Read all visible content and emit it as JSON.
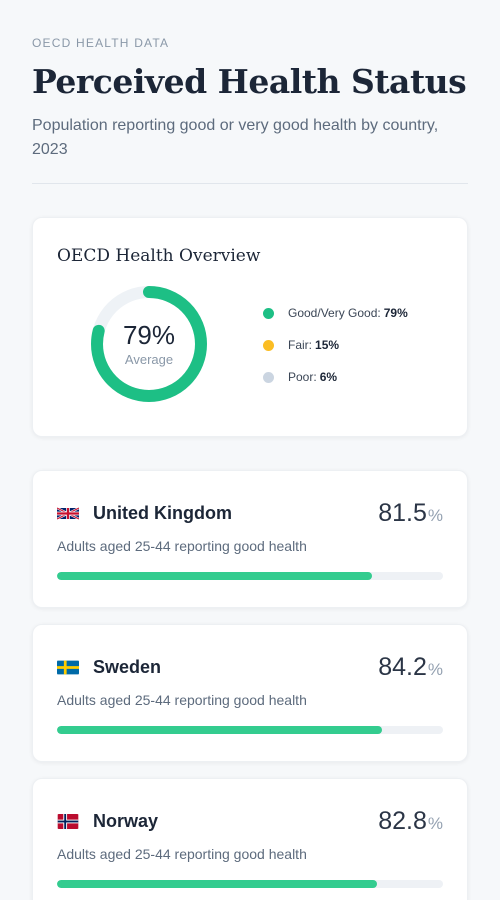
{
  "header": {
    "eyebrow": "OECD HEALTH DATA",
    "title": "Perceived Health Status",
    "subtitle": "Population reporting good or very good health by country, 2023"
  },
  "overview": {
    "title": "OECD Health Overview",
    "center_value": "79%",
    "center_label": "Average"
  },
  "countries": [
    {
      "name": "United Kingdom",
      "flag": "uk-flag",
      "value": "81.5",
      "unit": "%",
      "description": "Adults aged 25-44 reporting good health"
    },
    {
      "name": "Sweden",
      "flag": "sweden-flag",
      "value": "84.2",
      "unit": "%",
      "description": "Adults aged 25-44 reporting good health"
    },
    {
      "name": "Norway",
      "flag": "norway-flag",
      "value": "82.8",
      "unit": "%",
      "description": "Adults aged 25-44 reporting good health"
    }
  ],
  "colors": {
    "good": "#1dbf85",
    "fair": "#fbbd23",
    "poor": "#cbd5e1",
    "bar": "#33cc8f",
    "track": "#eef1f5"
  },
  "chart_data": [
    {
      "type": "pie",
      "title": "OECD Health Overview",
      "categories": [
        "Good/Very Good",
        "Fair",
        "Poor"
      ],
      "values": [
        79,
        15,
        6
      ],
      "labels": [
        "79%",
        "15%",
        "6%"
      ]
    },
    {
      "type": "bar",
      "categories": [
        "United Kingdom",
        "Sweden",
        "Norway"
      ],
      "values": [
        81.5,
        84.2,
        82.8
      ],
      "ylim": [
        0,
        100
      ]
    }
  ]
}
